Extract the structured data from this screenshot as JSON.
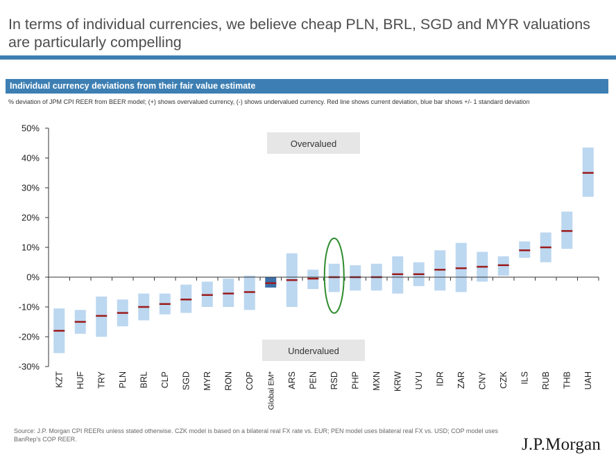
{
  "headline": "In terms of individual currencies, we believe cheap PLN, BRL, SGD and MYR valuations are particularly compelling",
  "panel_title": "Individual currency deviations from their fair value estimate",
  "subtitle": "% deviation of JPM CPI REER from BEER model; (+) shows overvalued currency, (-) shows undervalued currency. Red line shows current deviation, blue bar shows +/- 1 standard deviation",
  "source": "Source: J.P. Morgan CPI REERs unless stated otherwise. CZK model is based on a bilateral real FX rate vs. EUR; PEN model uses bilateral real FX vs. USD; COP model uses BanRep's COP REER.",
  "logo": "J.P.Morgan",
  "colors": {
    "band": "#bcd7f0",
    "band_highlight": "#3d6fa8",
    "current": "#9b1b1b",
    "highlight_ellipse": "#2e8b2e",
    "header_bar": "#3d7fb3",
    "label_box": "#e6e6e6"
  },
  "chart_data": {
    "type": "bar",
    "title": "Individual currency deviations from their fair value estimate",
    "ylim": [
      -30,
      50
    ],
    "yticks": [
      "50%",
      "40%",
      "30%",
      "20%",
      "10%",
      "0%",
      "-10%",
      "-20%",
      "-30%"
    ],
    "ytick_values": [
      50,
      40,
      30,
      20,
      10,
      0,
      -10,
      -20,
      -30
    ],
    "grid": false,
    "annotations": {
      "over": "Overvalued",
      "under": "Undervalued"
    },
    "highlighted_category": "RSD",
    "categories": [
      "KZT",
      "HUF",
      "TRY",
      "PLN",
      "BRL",
      "CLP",
      "SGD",
      "MYR",
      "RON",
      "COP",
      "Global EM*",
      "ARS",
      "PEN",
      "RSD",
      "PHP",
      "MXN",
      "KRW",
      "UYU",
      "IDR",
      "ZAR",
      "CNY",
      "CZK",
      "ILS",
      "RUB",
      "THB",
      "UAH"
    ],
    "series": [
      {
        "name": "+/- 1 standard deviation (low)",
        "values": [
          -25.5,
          -19,
          -20,
          -16.5,
          -14.5,
          -12.5,
          -12,
          -10,
          -10,
          -11,
          -3.5,
          -10,
          -4,
          -5,
          -4.5,
          -4.5,
          -5.5,
          -3,
          -4.5,
          -5,
          -1.5,
          0.5,
          6.5,
          5,
          9.5,
          27
        ]
      },
      {
        "name": "+/- 1 standard deviation (high)",
        "values": [
          -10.5,
          -11,
          -6.5,
          -7.5,
          -5.5,
          -5.5,
          -2.5,
          -1.5,
          -0.5,
          0.5,
          0,
          8,
          2.5,
          4.5,
          4,
          4.5,
          7,
          5,
          9,
          11.5,
          8.5,
          7,
          12,
          15,
          22,
          43.5
        ]
      },
      {
        "name": "Current deviation",
        "values": [
          -18,
          -15,
          -13,
          -12,
          -10,
          -9,
          -7.5,
          -6,
          -5.5,
          -5,
          -2,
          -1,
          -0.5,
          0,
          0,
          0,
          1,
          1,
          2.5,
          3,
          3.5,
          4,
          9,
          10,
          15.5,
          35
        ]
      }
    ]
  }
}
